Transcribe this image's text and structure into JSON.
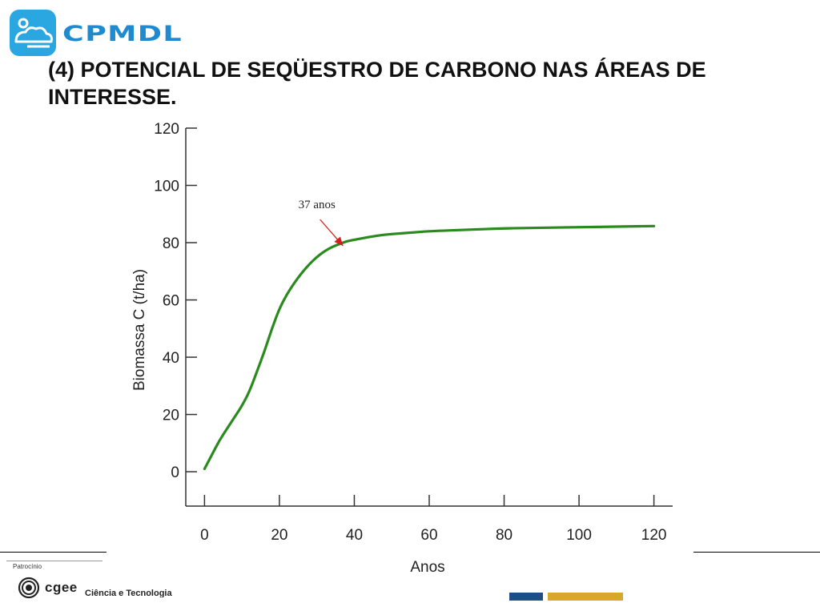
{
  "header": {
    "logo_text": "CPMDL",
    "title": "(4) POTENCIAL DE SEQÜESTRO DE CARBONO NAS ÁREAS DE INTERESSE."
  },
  "chart_data": {
    "type": "line",
    "title": "",
    "xlabel": "Anos",
    "ylabel": "Biomassa C (t/ha)",
    "xlim": [
      -5,
      125
    ],
    "ylim": [
      -12,
      120
    ],
    "x_ticks": [
      0,
      20,
      40,
      60,
      80,
      100,
      120
    ],
    "y_ticks": [
      0,
      20,
      40,
      60,
      80,
      100,
      120
    ],
    "grid": false,
    "series": [
      {
        "name": "",
        "color": "#2a8a1e",
        "x": [
          0,
          2,
          4,
          6,
          8,
          10,
          12,
          14,
          16,
          18,
          20,
          22,
          24,
          26,
          28,
          30,
          32,
          34,
          36,
          38,
          40,
          44,
          48,
          52,
          56,
          60,
          70,
          80,
          90,
          100,
          110,
          120
        ],
        "y": [
          1,
          6,
          11,
          15,
          19,
          23,
          28,
          35,
          42,
          50,
          57,
          62,
          66,
          69.5,
          72.5,
          75,
          77,
          78.5,
          79.5,
          80.5,
          81,
          82,
          82.8,
          83.2,
          83.6,
          84,
          84.5,
          85,
          85.2,
          85.4,
          85.6,
          85.8
        ]
      }
    ],
    "annotations": [
      {
        "text": "37 anos",
        "x": 30,
        "y": 92,
        "arrow_to_x": 37,
        "arrow_to_y": 80
      }
    ]
  },
  "footer": {
    "sponsor_label": "Patrocínio",
    "cgee_text": "cgee",
    "cgee_subtitle": "Ciência e Tecnologia"
  }
}
